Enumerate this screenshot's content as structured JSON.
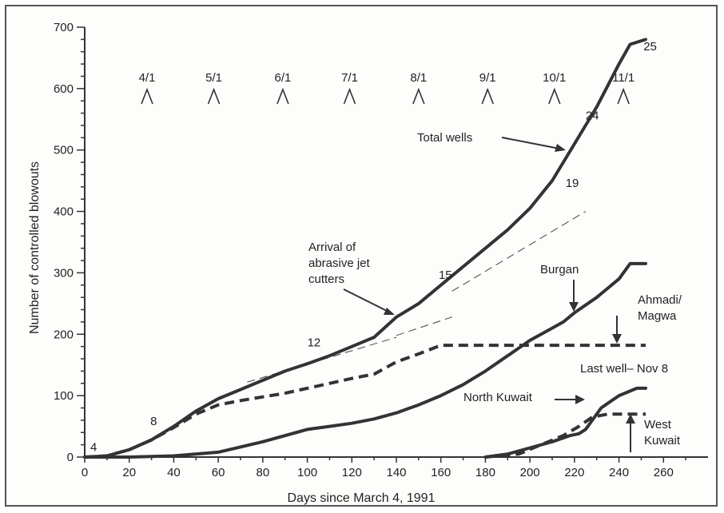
{
  "chart_data": {
    "type": "line",
    "title": "",
    "xlabel": "Days since March 4, 1991",
    "ylabel": "Number of controlled blowouts",
    "xlim": [
      0,
      280
    ],
    "ylim": [
      0,
      700
    ],
    "x_ticks": [
      0,
      20,
      40,
      60,
      80,
      100,
      120,
      140,
      160,
      180,
      200,
      220,
      240,
      260
    ],
    "y_ticks": [
      0,
      100,
      200,
      300,
      400,
      500,
      600,
      700
    ],
    "grid": false,
    "month_markers": [
      {
        "label": "4/1",
        "x": 28
      },
      {
        "label": "5/1",
        "x": 58
      },
      {
        "label": "6/1",
        "x": 89
      },
      {
        "label": "7/1",
        "x": 119
      },
      {
        "label": "8/1",
        "x": 150
      },
      {
        "label": "9/1",
        "x": 181
      },
      {
        "label": "10/1",
        "x": 211
      },
      {
        "label": "11/1",
        "x": 242
      }
    ],
    "series": [
      {
        "name": "Total wells",
        "style": "solid",
        "x": [
          0,
          10,
          20,
          30,
          40,
          50,
          60,
          70,
          80,
          90,
          100,
          110,
          120,
          130,
          140,
          150,
          160,
          170,
          180,
          190,
          200,
          210,
          220,
          230,
          240,
          245,
          252
        ],
        "y": [
          0,
          2,
          12,
          28,
          50,
          75,
          95,
          110,
          125,
          140,
          152,
          165,
          180,
          195,
          228,
          250,
          280,
          310,
          340,
          370,
          405,
          450,
          510,
          570,
          640,
          672,
          680
        ]
      },
      {
        "name": "Burgan",
        "style": "solid",
        "x": [
          0,
          20,
          40,
          60,
          80,
          100,
          110,
          120,
          130,
          140,
          150,
          160,
          170,
          180,
          190,
          200,
          210,
          215,
          220,
          230,
          240,
          245,
          252
        ],
        "y": [
          0,
          0,
          2,
          8,
          25,
          45,
          50,
          55,
          62,
          72,
          85,
          100,
          118,
          140,
          165,
          190,
          210,
          220,
          235,
          260,
          290,
          315,
          315
        ]
      },
      {
        "name": "Ahmadi/ Magwa",
        "style": "dashed",
        "x": [
          0,
          10,
          20,
          30,
          40,
          50,
          60,
          70,
          80,
          90,
          100,
          110,
          120,
          130,
          140,
          150,
          160,
          180,
          200,
          220,
          240,
          252
        ],
        "y": [
          0,
          2,
          12,
          28,
          48,
          70,
          85,
          92,
          98,
          104,
          112,
          120,
          128,
          135,
          155,
          168,
          182,
          182,
          182,
          182,
          182,
          182
        ]
      },
      {
        "name": "North Kuwait",
        "style": "solid",
        "x": [
          180,
          190,
          200,
          210,
          218,
          222,
          225,
          232,
          240,
          248,
          252
        ],
        "y": [
          0,
          5,
          15,
          25,
          35,
          38,
          45,
          80,
          100,
          112,
          112
        ]
      },
      {
        "name": "West Kuwait",
        "style": "dashed",
        "x": [
          180,
          195,
          205,
          215,
          222,
          228,
          235,
          245,
          252
        ],
        "y": [
          0,
          5,
          20,
          35,
          50,
          65,
          70,
          70,
          70
        ]
      }
    ],
    "trend_lines": [
      {
        "x": [
          73,
          140
        ],
        "y": [
          122,
          195
        ]
      },
      {
        "x": [
          140,
          165
        ],
        "y": [
          198,
          228
        ]
      },
      {
        "x": [
          165,
          225
        ],
        "y": [
          270,
          400
        ]
      }
    ],
    "point_labels": [
      {
        "text": "4",
        "x": 4,
        "y": 10
      },
      {
        "text": "8",
        "x": 31,
        "y": 52
      },
      {
        "text": "12",
        "x": 103,
        "y": 180
      },
      {
        "text": "15",
        "x": 162,
        "y": 290
      },
      {
        "text": "19",
        "x": 219,
        "y": 440
      },
      {
        "text": "24",
        "x": 228,
        "y": 550
      },
      {
        "text": "25",
        "x": 254,
        "y": 662
      }
    ],
    "annotations": {
      "total_wells": "Total wells",
      "arrival_1": "Arrival of",
      "arrival_2": "abrasive jet",
      "arrival_3": "cutters",
      "burgan": "Burgan",
      "ahmadi_1": "Ahmadi/",
      "ahmadi_2": "Magwa",
      "last_well": "Last well– Nov 8",
      "north_kuwait": "North Kuwait",
      "west_1": "West",
      "west_2": "Kuwait"
    }
  }
}
